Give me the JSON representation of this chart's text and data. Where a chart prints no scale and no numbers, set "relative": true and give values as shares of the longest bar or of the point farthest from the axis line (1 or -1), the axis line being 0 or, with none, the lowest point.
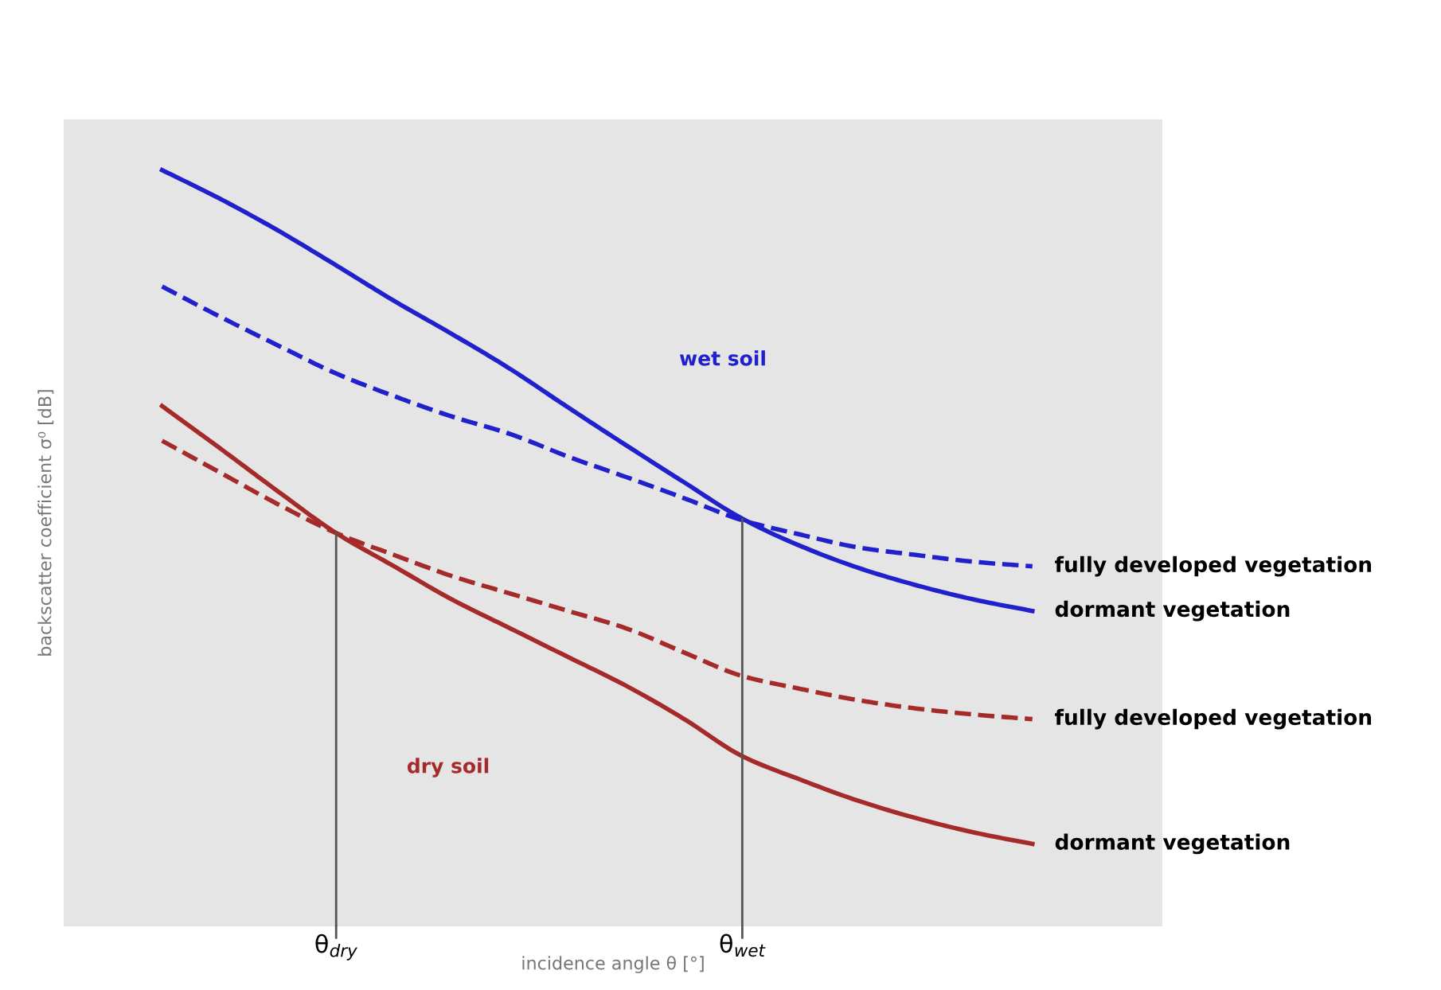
{
  "chart_data": {
    "type": "line",
    "relative": true,
    "xlabel": "incidence angle θ [°]",
    "ylabel": "backscatter coefficient σ⁰ [dB]",
    "categories": [
      null,
      null,
      null,
      "θ$_{dry}$",
      null,
      null,
      null,
      null,
      null,
      null,
      "θ$_{wet}$",
      null,
      null,
      null,
      null,
      null
    ],
    "series": [
      {
        "name": "dormant vegetation",
        "color": "#2020cc",
        "line_style": "solid",
        "values": [
          1,
          0.962,
          0.92,
          0.874,
          0.827,
          0.783,
          0.737,
          0.686,
          0.636,
          0.587,
          0.539,
          0.503,
          0.474,
          0.451,
          0.432,
          0.417
        ]
      },
      {
        "name": "fully developed vegetation",
        "color": "#2020cc",
        "line_style": "dashed",
        "values": [
          0.846,
          0.806,
          0.768,
          0.731,
          0.701,
          0.674,
          0.651,
          0.621,
          0.594,
          0.566,
          0.537,
          0.518,
          0.501,
          0.491,
          0.482,
          0.476
        ]
      },
      {
        "name": "dormant vegetation",
        "color": "#a52a2a",
        "line_style": "solid",
        "values": [
          0.688,
          0.632,
          0.575,
          0.52,
          0.476,
          0.432,
          0.394,
          0.356,
          0.318,
          0.274,
          0.225,
          0.194,
          0.166,
          0.143,
          0.124,
          0.109
        ]
      },
      {
        "name": "fully developed vegetation",
        "color": "#a52a2a",
        "line_style": "dashed",
        "values": [
          0.642,
          0.6,
          0.558,
          0.52,
          0.491,
          0.463,
          0.44,
          0.417,
          0.394,
          0.362,
          0.331,
          0.314,
          0.299,
          0.288,
          0.28,
          0.274
        ]
      }
    ],
    "annotations": [
      "wet soil",
      "dry soil"
    ],
    "ref_lines": [
      {
        "axis": "x",
        "value": "θ$_{dry}$",
        "color": "#555555"
      },
      {
        "axis": "x",
        "value": "θ$_{wet}$",
        "color": "#555555"
      }
    ],
    "grid": false,
    "legend": false,
    "marker": "none"
  }
}
